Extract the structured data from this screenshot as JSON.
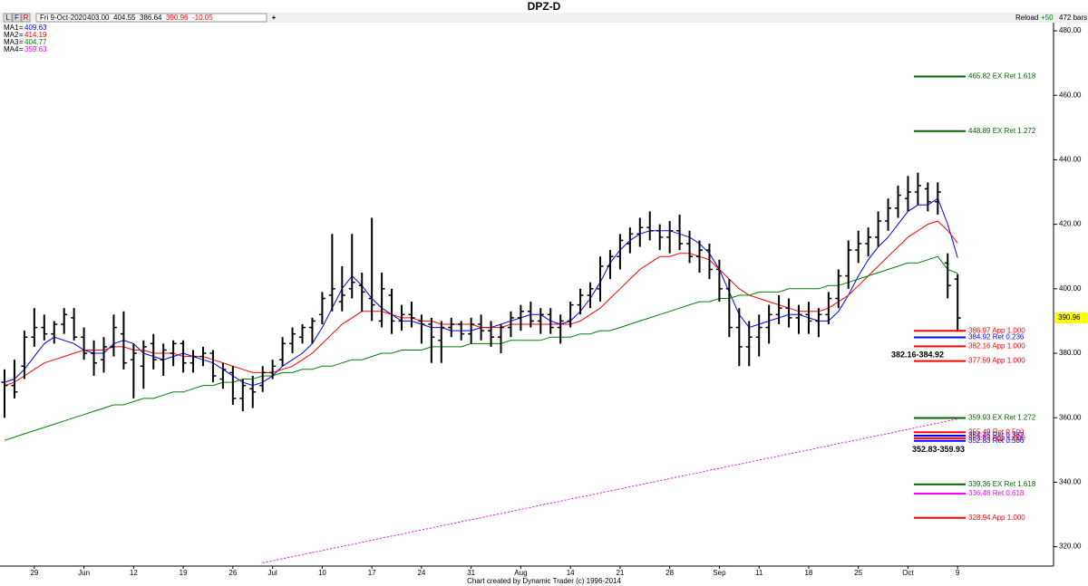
{
  "toolbar": {
    "buttons": [
      "L",
      "F",
      "R"
    ],
    "date": "Fri 9-Oct-2020",
    "quote": [
      {
        "text": "403.00",
        "color": "#000000"
      },
      {
        "text": "404.55",
        "color": "#000000"
      },
      {
        "text": "386.64",
        "color": "#000000"
      },
      {
        "text": "390.96",
        "color": "#ff0000"
      },
      {
        "text": "-10.05",
        "color": "#ff0000"
      }
    ],
    "add": "+",
    "reload": "Reload",
    "step": "+50",
    "bars": "472 bars"
  },
  "chart_data": {
    "type": "ohlc",
    "title": "DPZ-D",
    "footer": "Chart created by Dynamic Trader  (c) 1996-2014",
    "bar_color": "#000000",
    "legend_separator": "=",
    "categories": [
      null,
      null,
      null,
      "29",
      null,
      null,
      null,
      null,
      "Jun",
      null,
      null,
      null,
      null,
      "12",
      null,
      null,
      null,
      null,
      "19",
      null,
      null,
      null,
      null,
      "26",
      null,
      null,
      null,
      "Jul",
      null,
      null,
      null,
      null,
      "10",
      null,
      null,
      null,
      null,
      "17",
      null,
      null,
      null,
      null,
      "24",
      null,
      null,
      null,
      null,
      "31",
      null,
      null,
      null,
      null,
      "Aug",
      null,
      null,
      null,
      null,
      "14",
      null,
      null,
      null,
      null,
      "21",
      null,
      null,
      null,
      null,
      "28",
      null,
      null,
      null,
      null,
      "Sep",
      null,
      null,
      null,
      "11",
      null,
      null,
      null,
      null,
      "18",
      null,
      null,
      null,
      null,
      "25",
      null,
      null,
      null,
      null,
      "Oct",
      null,
      null,
      null,
      null,
      "9"
    ],
    "open": [
      371,
      370,
      376,
      385,
      388,
      386,
      389,
      391,
      385,
      380,
      378,
      382,
      386,
      378,
      376,
      383,
      378,
      380,
      383,
      377,
      379,
      380,
      372,
      374,
      366,
      369,
      370,
      374,
      378,
      383,
      385,
      388,
      392,
      398,
      396,
      400,
      401,
      397,
      390,
      398,
      390,
      392,
      390,
      389,
      384,
      388,
      389,
      386,
      389,
      387,
      385,
      388,
      391,
      393,
      390,
      392,
      388,
      390,
      395,
      398,
      400,
      407,
      410,
      414,
      417,
      419,
      418,
      416,
      418,
      414,
      410,
      412,
      406,
      400,
      388,
      382,
      385,
      388,
      392,
      394,
      391,
      392,
      390,
      392,
      397,
      404,
      412,
      414,
      416,
      421,
      425,
      428,
      430,
      431,
      427,
      408,
      403
    ],
    "high": [
      375,
      378,
      387,
      394,
      392,
      390,
      394,
      394,
      388,
      384,
      385,
      392,
      393,
      383,
      384,
      386,
      383,
      384,
      384,
      381,
      382,
      381,
      377,
      376,
      372,
      373,
      376,
      378,
      385,
      388,
      389,
      391,
      399,
      417,
      407,
      417,
      405,
      422,
      405,
      400,
      395,
      396,
      392,
      391,
      390,
      391,
      390,
      391,
      392,
      390,
      389,
      393,
      395,
      396,
      394,
      394,
      392,
      396,
      400,
      402,
      410,
      412,
      417,
      419,
      422,
      424,
      420,
      421,
      423,
      418,
      415,
      414,
      409,
      403,
      394,
      390,
      392,
      395,
      398,
      397,
      395,
      396,
      394,
      399,
      406,
      415,
      418,
      419,
      424,
      428,
      432,
      435,
      436,
      433,
      433,
      411,
      404.55
    ],
    "low": [
      360,
      366,
      372,
      382,
      384,
      383,
      386,
      384,
      378,
      373,
      374,
      379,
      375,
      366,
      369,
      375,
      373,
      376,
      374,
      374,
      376,
      371,
      369,
      364,
      362,
      363,
      368,
      372,
      376,
      380,
      383,
      383,
      389,
      393,
      393,
      397,
      393,
      390,
      388,
      386,
      387,
      388,
      383,
      377,
      377,
      385,
      384,
      383,
      384,
      382,
      380,
      385,
      387,
      388,
      386,
      386,
      383,
      388,
      392,
      394,
      396,
      403,
      406,
      411,
      413,
      415,
      412,
      411,
      412,
      408,
      405,
      403,
      396,
      385,
      376,
      376,
      379,
      383,
      389,
      388,
      386,
      386,
      385,
      389,
      394,
      400,
      408,
      410,
      413,
      418,
      422,
      424,
      426,
      424,
      423,
      397,
      386.64
    ],
    "close": [
      370,
      368,
      385,
      388,
      386,
      389,
      392,
      385,
      380,
      377,
      382,
      388,
      377,
      380,
      382,
      378,
      381,
      383,
      377,
      379,
      380,
      373,
      375,
      366,
      370,
      368,
      374,
      376,
      383,
      386,
      388,
      390,
      397,
      400,
      398,
      402,
      399,
      395,
      400,
      390,
      392,
      391,
      389,
      385,
      388,
      389,
      386,
      389,
      387,
      385,
      388,
      391,
      393,
      390,
      392,
      388,
      390,
      395,
      398,
      400,
      407,
      410,
      415,
      417,
      419,
      418,
      416,
      418,
      414,
      410,
      412,
      406,
      400,
      388,
      382,
      385,
      388,
      392,
      394,
      391,
      392,
      390,
      392,
      397,
      404,
      412,
      414,
      416,
      421,
      425,
      429,
      430,
      432,
      427,
      430,
      401.01,
      390.96
    ],
    "series": [
      {
        "name": "MA1",
        "color": "#0000ff",
        "dashed": false,
        "values": [
          371,
          372,
          375,
          379,
          383,
          385,
          384,
          383,
          381,
          380,
          380,
          383,
          384,
          383,
          380,
          379,
          378,
          379,
          380,
          379,
          378,
          377,
          375,
          373,
          371,
          370,
          371,
          373,
          376,
          378,
          380,
          383,
          388,
          394,
          400,
          404,
          401,
          397,
          394,
          392,
          390,
          390,
          389,
          388,
          388,
          387,
          387,
          387,
          388,
          388,
          389,
          390,
          391,
          392,
          392,
          390,
          389,
          390,
          393,
          397,
          402,
          408,
          412,
          415,
          417,
          418,
          418,
          418,
          417,
          416,
          414,
          411,
          406,
          399,
          392,
          388,
          389,
          390,
          391,
          392,
          392,
          391,
          390,
          390,
          393,
          398,
          404,
          409,
          413,
          416,
          420,
          424,
          426,
          426,
          428,
          420,
          409.63
        ]
      },
      {
        "name": "MA2",
        "color": "#ff0000",
        "dashed": false,
        "values": [
          370,
          371,
          373,
          375,
          377,
          378,
          379,
          380,
          381,
          381,
          381,
          382,
          382,
          381,
          381,
          380,
          380,
          380,
          379,
          379,
          379,
          378,
          377,
          376,
          375,
          374,
          374,
          374,
          375,
          376,
          378,
          380,
          383,
          386,
          389,
          391,
          393,
          393,
          393,
          392,
          391,
          391,
          390,
          390,
          389,
          389,
          389,
          389,
          388,
          388,
          388,
          389,
          389,
          389,
          389,
          389,
          389,
          389,
          390,
          392,
          394,
          397,
          400,
          403,
          406,
          408,
          410,
          410,
          411,
          411,
          410,
          409,
          406,
          403,
          400,
          398,
          397,
          396,
          395,
          394,
          393,
          393,
          393,
          394,
          396,
          398,
          401,
          404,
          407,
          410,
          413,
          416,
          418,
          420,
          421,
          418,
          414.19
        ]
      },
      {
        "name": "MA3",
        "color": "#008000",
        "dashed": false,
        "values": [
          353,
          354,
          355,
          356,
          357,
          358,
          359,
          360,
          361,
          362,
          363,
          364,
          364,
          365,
          366,
          366,
          367,
          368,
          368,
          369,
          370,
          370,
          371,
          371,
          372,
          372,
          373,
          373,
          374,
          374,
          375,
          375,
          376,
          376,
          377,
          378,
          378,
          379,
          380,
          380,
          381,
          381,
          381,
          382,
          382,
          382,
          382,
          383,
          383,
          383,
          383,
          384,
          384,
          384,
          384,
          385,
          385,
          385,
          386,
          386,
          387,
          387,
          388,
          389,
          390,
          391,
          392,
          393,
          394,
          395,
          396,
          396,
          397,
          397,
          398,
          398,
          399,
          399,
          399,
          400,
          400,
          400,
          400,
          401,
          401,
          402,
          403,
          404,
          405,
          406,
          407,
          408,
          408,
          409,
          410,
          406,
          404.77
        ]
      },
      {
        "name": "MA4",
        "color": "#ff00ff",
        "dashed": true,
        "values": [
          null,
          null,
          null,
          null,
          null,
          null,
          null,
          null,
          null,
          null,
          null,
          null,
          null,
          null,
          null,
          null,
          null,
          null,
          null,
          null,
          null,
          null,
          null,
          null,
          null,
          null,
          315.0,
          315.6,
          316.3,
          316.9,
          317.6,
          318.2,
          318.8,
          319.5,
          320.1,
          320.7,
          321.4,
          322.0,
          322.7,
          323.3,
          323.9,
          324.6,
          325.2,
          325.8,
          326.5,
          327.1,
          327.8,
          328.4,
          329.0,
          329.7,
          330.3,
          330.9,
          331.6,
          332.2,
          332.9,
          333.5,
          334.1,
          334.8,
          335.4,
          336.0,
          336.7,
          337.3,
          337.9,
          338.6,
          339.2,
          339.9,
          340.5,
          341.1,
          341.8,
          342.4,
          343.0,
          343.7,
          344.3,
          345.0,
          345.6,
          346.2,
          346.9,
          347.5,
          348.1,
          348.8,
          349.4,
          350.0,
          350.7,
          351.3,
          352.0,
          352.6,
          353.2,
          353.9,
          354.5,
          355.1,
          355.8,
          356.4,
          357.1,
          357.7,
          358.3,
          359.0,
          359.63
        ]
      }
    ],
    "ylim": [
      314,
      484.5
    ],
    "yticks": [
      {
        "value": 320,
        "label": "320.00"
      },
      {
        "value": 340,
        "label": "340.00"
      },
      {
        "value": 360,
        "label": "360.00"
      },
      {
        "value": 380,
        "label": "380.00"
      },
      {
        "value": 400,
        "label": "400.00"
      },
      {
        "value": 420,
        "label": "420.00"
      },
      {
        "value": 440,
        "label": "440.00"
      },
      {
        "value": 460,
        "label": "460.00"
      },
      {
        "value": 480,
        "label": "480.00"
      }
    ],
    "last_price": {
      "value": 390.96,
      "color": "#ffff00"
    },
    "levels": [
      {
        "value": 465.82,
        "label": "465.82 EX Ret 1.618",
        "color": "#006400"
      },
      {
        "value": 448.89,
        "label": "448.89 EX Ret 1.272",
        "color": "#006400"
      },
      {
        "value": 386.97,
        "label": "386.97 App 1.000",
        "color": "#ff0000"
      },
      {
        "value": 384.92,
        "label": "384.92 Ret 0.236",
        "color": "#0000ff"
      },
      {
        "value": 382.16,
        "label": "382.16 App 1.000",
        "color": "#ff0000"
      },
      {
        "value": 377.59,
        "label": "377.59 App 1.000",
        "color": "#ff0000"
      },
      {
        "value": 359.93,
        "label": "359.93 EX Ret 1.272",
        "color": "#006400"
      },
      {
        "value": 355.49,
        "label": "355.49 Ret 0.500",
        "color": "#ff0000"
      },
      {
        "value": 354.45,
        "label": "354.45 Ret 0.382",
        "color": "#0000ff"
      },
      {
        "value": 353.63,
        "label": "353.63 App 1.000",
        "color": "#ff0000"
      },
      {
        "value": 352.83,
        "label": "352.83 Ret 0.586",
        "color": "#0000ff"
      },
      {
        "value": 339.36,
        "label": "339.36 EX Ret 1.618",
        "color": "#006400"
      },
      {
        "value": 336.48,
        "label": "336.48 Ret 0.618",
        "color": "#ff00ff"
      },
      {
        "value": 328.94,
        "label": "328.94 App 1.000",
        "color": "#ff0000"
      }
    ],
    "zones": [
      {
        "label": "382.16-384.92",
        "low": 382.16,
        "high": 384.92
      },
      {
        "label": "352.83-359.93",
        "low": 352.83,
        "high": 359.93
      }
    ]
  }
}
